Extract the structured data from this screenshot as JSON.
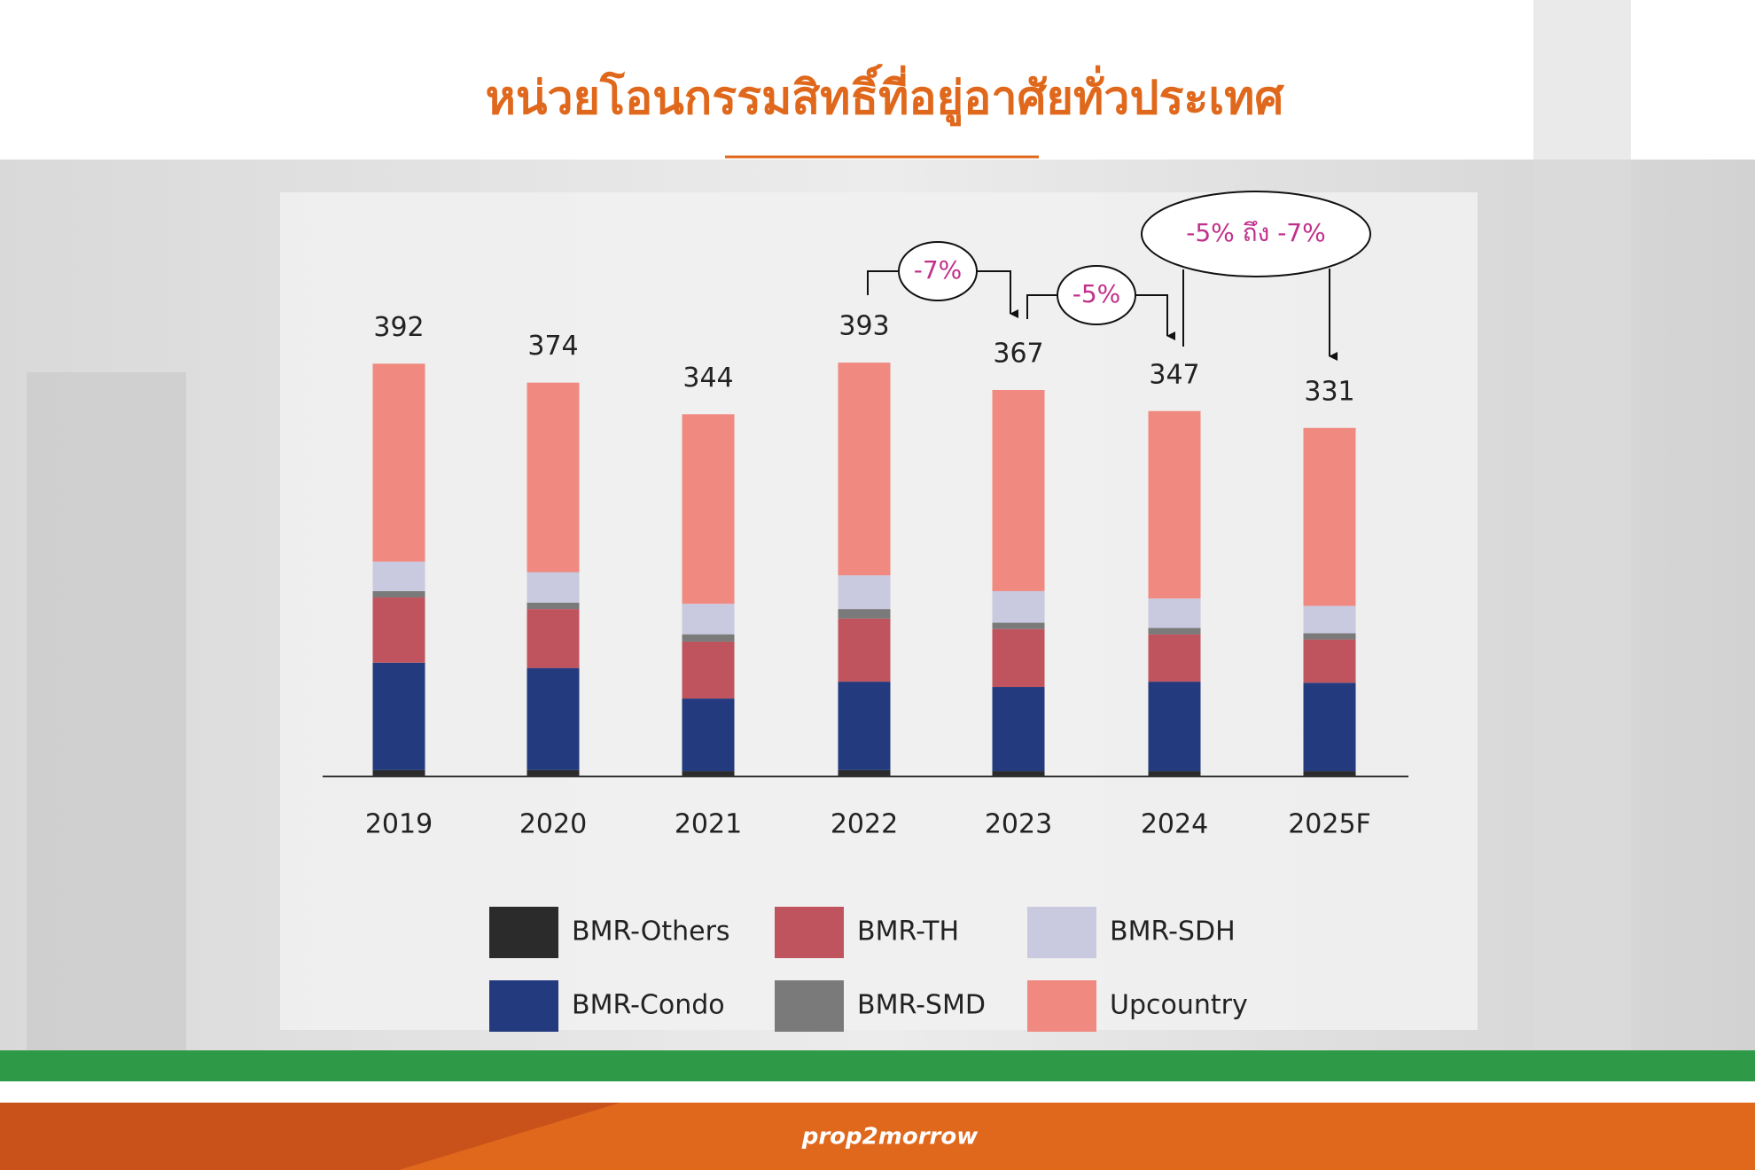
{
  "chart_data": {
    "type": "stacked-bar",
    "title": "หน่วยโอนกรรมสิทธิ์ที่อยู่อาศัยทั่วประเทศ",
    "categories": [
      "2019",
      "2020",
      "2021",
      "2022",
      "2023",
      "2024",
      "2025F"
    ],
    "series": [
      {
        "name": "BMR-Others",
        "color": "#2b2b2b",
        "values": [
          6,
          6,
          5,
          6,
          5,
          5,
          5
        ]
      },
      {
        "name": "BMR-Condo",
        "color": "#233a7e",
        "values": [
          102,
          97,
          69,
          84,
          80,
          85,
          84
        ]
      },
      {
        "name": "BMR-TH",
        "color": "#c0545e",
        "values": [
          62,
          56,
          54,
          60,
          55,
          45,
          41
        ]
      },
      {
        "name": "BMR-SMD",
        "color": "#7a7a7a",
        "values": [
          6,
          6,
          7,
          9,
          6,
          6,
          6
        ]
      },
      {
        "name": "BMR-SDH",
        "color": "#c9c9e0",
        "values": [
          28,
          29,
          29,
          32,
          30,
          28,
          26
        ]
      },
      {
        "name": "Upcountry",
        "color": "#f08a80",
        "values": [
          188,
          180,
          180,
          202,
          191,
          178,
          169
        ]
      }
    ],
    "totals": [
      392,
      374,
      344,
      393,
      367,
      347,
      331
    ],
    "annotations": [
      "-7%",
      "-5%",
      "-5% ถึง -7%"
    ]
  },
  "brand": "prop2morrow"
}
